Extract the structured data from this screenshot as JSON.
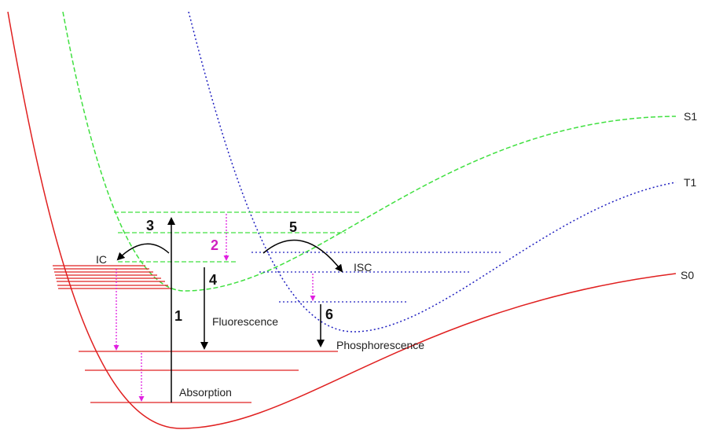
{
  "state_labels": [
    "S1",
    "T1",
    "S0"
  ],
  "process_labels": [
    "IC",
    "ISC",
    "Fluorescence",
    "Phosphorescence",
    "Absorption"
  ],
  "step_numbers": [
    "1",
    "2",
    "3",
    "4",
    "5",
    "6"
  ]
}
